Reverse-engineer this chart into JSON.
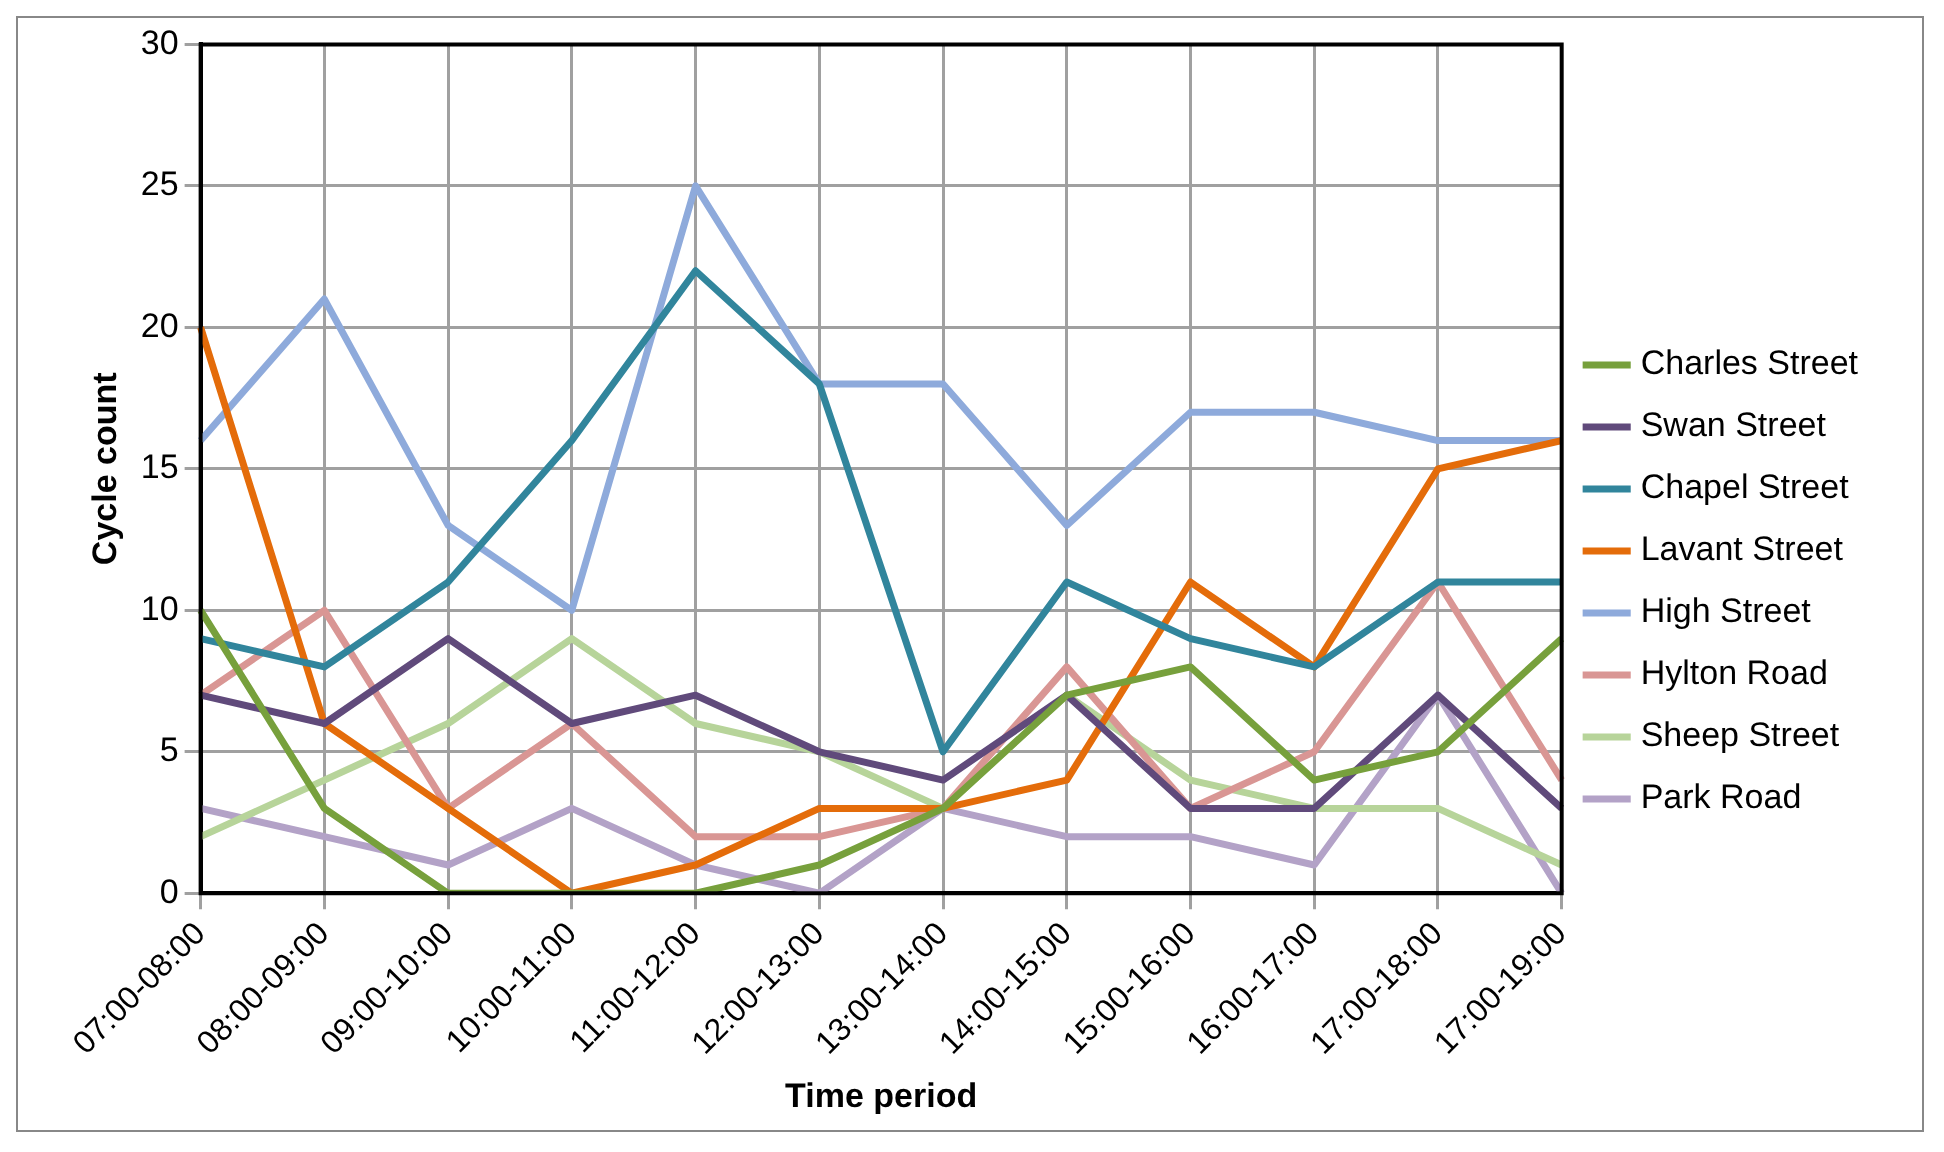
{
  "chart_data": {
    "type": "line",
    "xlabel": "Time period",
    "ylabel": "Cycle count",
    "categories": [
      "07:00-08:00",
      "08:00-09:00",
      "09:00-10:00",
      "10:00-11:00",
      "11:00-12:00",
      "12:00-13:00",
      "13:00-14:00",
      "14:00-15:00",
      "15:00-16:00",
      "16:00-17:00",
      "17:00-18:00",
      "17:00-19:00"
    ],
    "series": [
      {
        "name": "Charles Street",
        "color": "#77a03c",
        "values": [
          10,
          3,
          0,
          0,
          0,
          1,
          3,
          7,
          8,
          4,
          5,
          9
        ]
      },
      {
        "name": "Swan Street",
        "color": "#604a7b",
        "values": [
          7,
          6,
          9,
          6,
          7,
          5,
          4,
          7,
          3,
          3,
          7,
          3
        ]
      },
      {
        "name": "Chapel Street",
        "color": "#31859c",
        "values": [
          9,
          8,
          11,
          16,
          22,
          18,
          5,
          11,
          9,
          8,
          11,
          11
        ]
      },
      {
        "name": "Lavant Street",
        "color": "#e46c0a",
        "values": [
          20,
          6,
          3,
          0,
          1,
          3,
          3,
          4,
          11,
          8,
          15,
          16
        ]
      },
      {
        "name": "High Street",
        "color": "#8eaadb",
        "values": [
          16,
          21,
          13,
          10,
          25,
          18,
          18,
          13,
          17,
          17,
          16,
          16
        ]
      },
      {
        "name": "Hylton Road",
        "color": "#d99694",
        "values": [
          7,
          10,
          3,
          6,
          2,
          2,
          3,
          8,
          3,
          5,
          11,
          4
        ]
      },
      {
        "name": "Sheep Street",
        "color": "#b7d49a",
        "values": [
          2,
          4,
          6,
          9,
          6,
          5,
          3,
          7,
          4,
          3,
          3,
          1
        ]
      },
      {
        "name": "Park Road",
        "color": "#b3a2c7",
        "values": [
          3,
          2,
          1,
          3,
          1,
          0,
          3,
          2,
          2,
          1,
          7,
          0
        ]
      }
    ],
    "ylim": [
      0,
      30
    ],
    "yticks": [
      0,
      5,
      10,
      15,
      20,
      25,
      30
    ],
    "grid": true,
    "legend": "right",
    "marker": "none",
    "line_style": "solid"
  }
}
